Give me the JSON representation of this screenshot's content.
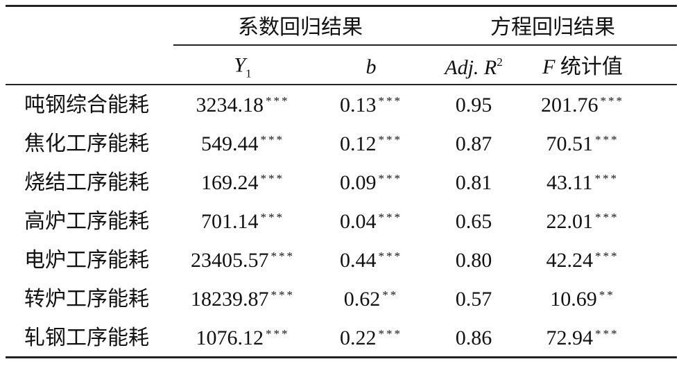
{
  "table": {
    "group_headers": [
      "系数回归结果",
      "方程回归结果"
    ],
    "column_headers": [
      {
        "text": "Y",
        "sub": "1"
      },
      {
        "text": "b"
      },
      {
        "text": "Adj. R",
        "sup": "2"
      },
      {
        "text": "F",
        "rest": "统计值"
      }
    ],
    "rows": [
      {
        "label": "吨钢综合能耗",
        "cells": [
          {
            "value": "3234.18",
            "sig": "***"
          },
          {
            "value": "0.13",
            "sig": "***"
          },
          {
            "value": "0.95"
          },
          {
            "value": "201.76",
            "sig": "***"
          }
        ]
      },
      {
        "label": "焦化工序能耗",
        "cells": [
          {
            "value": "549.44",
            "sig": "***"
          },
          {
            "value": "0.12",
            "sig": "***"
          },
          {
            "value": "0.87"
          },
          {
            "value": "70.51",
            "sig": "***"
          }
        ]
      },
      {
        "label": "烧结工序能耗",
        "cells": [
          {
            "value": "169.24",
            "sig": "***"
          },
          {
            "value": "0.09",
            "sig": "***"
          },
          {
            "value": "0.81"
          },
          {
            "value": "43.11",
            "sig": "***"
          }
        ]
      },
      {
        "label": "高炉工序能耗",
        "cells": [
          {
            "value": "701.14",
            "sig": "***"
          },
          {
            "value": "0.04",
            "sig": "***"
          },
          {
            "value": "0.65"
          },
          {
            "value": "22.01",
            "sig": "***"
          }
        ]
      },
      {
        "label": "电炉工序能耗",
        "cells": [
          {
            "value": "23405.57",
            "sig": "***"
          },
          {
            "value": "0.44",
            "sig": "***"
          },
          {
            "value": "0.80"
          },
          {
            "value": "42.24",
            "sig": "***"
          }
        ]
      },
      {
        "label": "转炉工序能耗",
        "cells": [
          {
            "value": "18239.87",
            "sig": "***"
          },
          {
            "value": "0.62",
            "sig": "**"
          },
          {
            "value": "0.57"
          },
          {
            "value": "10.69",
            "sig": "**"
          }
        ]
      },
      {
        "label": "轧钢工序能耗",
        "cells": [
          {
            "value": "1076.12",
            "sig": "***"
          },
          {
            "value": "0.22",
            "sig": "***"
          },
          {
            "value": "0.86"
          },
          {
            "value": "72.94",
            "sig": "***"
          }
        ]
      }
    ]
  }
}
